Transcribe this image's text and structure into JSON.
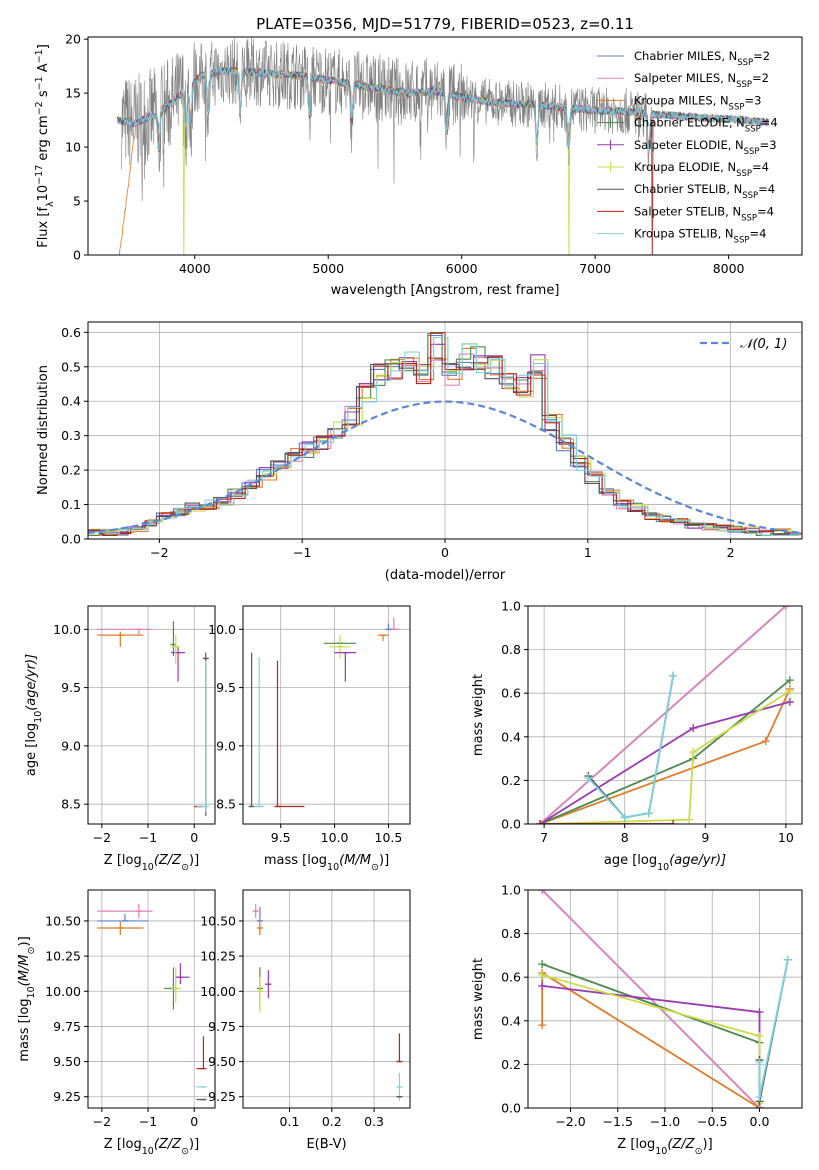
{
  "figure_title": "PLATE=0356, MJD=51779, FIBERID=0523, z=0.11",
  "colors": {
    "c_miles": "#5b7fcf",
    "s_miles": "#e083b8",
    "k_miles": "#e07b2a",
    "c_elodie": "#4d8a4d",
    "s_elodie": "#9a3bb0",
    "k_elodie": "#c9dc4a",
    "c_stelib": "#555555",
    "s_stelib": "#b5251f",
    "k_stelib": "#7fd3dc",
    "data": "#808080",
    "normal": "#5b88d6"
  },
  "chart_data": [
    {
      "id": "spectrum",
      "type": "line",
      "xlabel": "wavelength [Angstrom, rest frame]",
      "ylabel_parts": [
        "Flux [f",
        "λ",
        "10",
        "−17",
        " erg cm",
        "−2",
        " s",
        "−1",
        " A",
        "−1",
        "]"
      ],
      "xlim": [
        3200,
        8550
      ],
      "ylim": [
        0,
        20.2
      ],
      "xticks": [
        4000,
        5000,
        6000,
        7000,
        8000
      ],
      "yticks": [
        0,
        5,
        10,
        15,
        20
      ],
      "grid": false,
      "legend": "upper-right",
      "continuum": {
        "x": [
          3420,
          3550,
          3700,
          3850,
          3950,
          4050,
          4200,
          4400,
          4600,
          4800,
          5000,
          5200,
          5400,
          5600,
          5800,
          6000,
          6200,
          6400,
          6600,
          6800,
          7000,
          7200,
          7400,
          7600,
          7800,
          8000,
          8200,
          8300
        ],
        "y": [
          12.5,
          12.2,
          13.0,
          14.3,
          15.6,
          16.6,
          17.0,
          17.0,
          16.8,
          16.6,
          16.2,
          15.8,
          15.4,
          15.0,
          15.2,
          14.6,
          14.2,
          14.0,
          13.9,
          13.6,
          13.4,
          13.3,
          13.1,
          12.9,
          12.7,
          12.6,
          12.4,
          12.3
        ]
      },
      "data_range": [
        3450,
        7430
      ],
      "absorption_lines": [
        3730,
        3934,
        3969,
        4102,
        4340,
        4861,
        5175,
        5890,
        6563,
        6800,
        7400
      ],
      "legend_entries": [
        {
          "series": "c_miles",
          "label": "Chabrier MILES, N",
          "sub": "SSP",
          "n": "=2"
        },
        {
          "series": "s_miles",
          "label": "Salpeter MILES, N",
          "sub": "SSP",
          "n": "=2"
        },
        {
          "series": "k_miles",
          "label": "Kroupa MILES, N",
          "sub": "SSP",
          "n": "=3"
        },
        {
          "series": "c_elodie",
          "label": "Chabrier ELODIE, N",
          "sub": "SSP",
          "n": "=4"
        },
        {
          "series": "s_elodie",
          "label": "Salpeter ELODIE, N",
          "sub": "SSP",
          "n": "=3"
        },
        {
          "series": "k_elodie",
          "label": "Kroupa ELODIE, N",
          "sub": "SSP",
          "n": "=4"
        },
        {
          "series": "c_stelib",
          "label": "Chabrier STELIB, N",
          "sub": "SSP",
          "n": "=4"
        },
        {
          "series": "s_stelib",
          "label": "Salpeter STELIB, N",
          "sub": "SSP",
          "n": "=4"
        },
        {
          "series": "k_stelib",
          "label": "Kroupa STELIB, N",
          "sub": "SSP",
          "n": "=4"
        }
      ]
    },
    {
      "id": "residuals",
      "type": "line",
      "xlabel": "(data-model)/error",
      "ylabel": "Normed distribution",
      "xlim": [
        -2.5,
        2.5
      ],
      "ylim": [
        0,
        0.63
      ],
      "xticks": [
        -2,
        -1,
        0,
        1,
        2
      ],
      "yticks": [
        0.0,
        0.1,
        0.2,
        0.3,
        0.4,
        0.5,
        0.6
      ],
      "grid": true,
      "legend": "upper-right",
      "normal_label": "𝒩(0, 1)",
      "bin_width": 0.1,
      "hist_left_edge": -2.5,
      "hist_values": [
        0.02,
        0.02,
        0.02,
        0.03,
        0.05,
        0.07,
        0.08,
        0.09,
        0.1,
        0.11,
        0.13,
        0.16,
        0.19,
        0.22,
        0.24,
        0.26,
        0.28,
        0.32,
        0.36,
        0.42,
        0.48,
        0.5,
        0.52,
        0.48,
        0.56,
        0.48,
        0.53,
        0.52,
        0.5,
        0.46,
        0.44,
        0.5,
        0.34,
        0.28,
        0.22,
        0.18,
        0.13,
        0.1,
        0.09,
        0.07,
        0.06,
        0.05,
        0.04,
        0.035,
        0.03,
        0.03,
        0.025,
        0.02,
        0.02,
        0.02
      ]
    },
    {
      "id": "age_z",
      "type": "scatter",
      "xlabel_parts": [
        "Z [log",
        "10",
        "(Z/Z",
        "⊙",
        ")]"
      ],
      "ylabel_parts": [
        "age  [log",
        "10",
        "(age/yr)]"
      ],
      "xlim": [
        -2.3,
        0.45
      ],
      "ylim": [
        8.33,
        10.2
      ],
      "xticks": [
        -2,
        -1,
        0
      ],
      "yticks": [
        8.5,
        9.0,
        9.5,
        10.0
      ],
      "grid": true,
      "points": [
        {
          "s": "s_miles",
          "x": -1.2,
          "y": 10.0,
          "xe": [
            0.9,
            0.3
          ],
          "ye": [
            0.05,
            0.0
          ]
        },
        {
          "s": "k_miles",
          "x": -1.6,
          "y": 9.95,
          "xe": [
            0.5,
            0.5
          ],
          "ye": [
            0.1,
            0.03
          ]
        },
        {
          "s": "c_elodie",
          "x": -0.45,
          "y": 9.87,
          "xe": [
            0.0,
            0.0
          ],
          "ye": [
            0.1,
            0.2
          ]
        },
        {
          "s": "s_elodie",
          "x": -0.35,
          "y": 9.8,
          "xe": [
            0.15,
            0.15
          ],
          "ye": [
            0.25,
            0.05
          ]
        },
        {
          "s": "k_elodie",
          "x": -0.4,
          "y": 9.85,
          "xe": [
            0.1,
            0.1
          ],
          "ye": [
            0.15,
            0.1
          ]
        },
        {
          "s": "c_stelib",
          "x": 0.25,
          "y": 9.75,
          "xe": [
            0.0,
            0.0
          ],
          "ye": [
            1.35,
            0.05
          ]
        },
        {
          "s": "s_stelib",
          "x": 0.1,
          "y": 8.48,
          "xe": [
            0.1,
            0.1
          ],
          "ye": [
            0.0,
            0.0
          ]
        },
        {
          "s": "k_stelib",
          "x": 0.25,
          "y": 8.48,
          "xe": [
            0.2,
            0.0
          ],
          "ye": [
            0.05,
            1.25
          ]
        }
      ]
    },
    {
      "id": "age_mass",
      "type": "scatter",
      "xlabel_parts": [
        "mass [log",
        "10",
        "(M/M",
        "⊙",
        ")]"
      ],
      "xlim": [
        9.15,
        10.7
      ],
      "ylim": [
        8.33,
        10.2
      ],
      "xticks": [
        9.5,
        10.0,
        10.5
      ],
      "yticks": [
        8.5,
        9.0,
        9.5,
        10.0
      ],
      "grid": true,
      "points": [
        {
          "s": "c_elodie",
          "x": 10.05,
          "y": 9.88,
          "xe": [
            0.15,
            0.15
          ],
          "ye": [
            0.0,
            0.0
          ]
        },
        {
          "s": "k_elodie",
          "x": 10.05,
          "y": 9.85,
          "xe": [
            0.1,
            0.1
          ],
          "ye": [
            0.1,
            0.1
          ]
        },
        {
          "s": "s_elodie",
          "x": 10.1,
          "y": 9.8,
          "xe": [
            0.1,
            0.1
          ],
          "ye": [
            0.25,
            0.0
          ]
        },
        {
          "s": "k_miles",
          "x": 10.45,
          "y": 9.95,
          "xe": [
            0.05,
            0.05
          ],
          "ye": [
            0.05,
            0.0
          ]
        },
        {
          "s": "s_miles",
          "x": 10.55,
          "y": 10.0,
          "xe": [
            0.05,
            0.05
          ],
          "ye": [
            0.0,
            0.1
          ]
        },
        {
          "s": "c_miles",
          "x": 10.5,
          "y": 10.0,
          "xe": [
            0.0,
            0.0
          ],
          "ye": [
            0.0,
            0.05
          ]
        },
        {
          "s": "c_stelib",
          "x": 9.23,
          "y": 8.48,
          "xe": [
            0.0,
            0.0
          ],
          "ye": [
            0.0,
            1.32
          ]
        },
        {
          "s": "k_stelib",
          "x": 9.3,
          "y": 8.48,
          "xe": [
            0.05,
            0.05
          ],
          "ye": [
            0.0,
            1.28
          ]
        },
        {
          "s": "s_stelib",
          "x": 9.47,
          "y": 8.48,
          "xe": [
            0.0,
            0.25
          ],
          "ye": [
            0.0,
            1.25
          ]
        }
      ]
    },
    {
      "id": "weight_age",
      "type": "line",
      "xlabel_parts": [
        "age  [log",
        "10",
        "(age/yr)]"
      ],
      "ylabel": "mass weight",
      "xlim": [
        6.8,
        10.2
      ],
      "ylim": [
        0,
        1.0
      ],
      "xticks": [
        7,
        8,
        9,
        10
      ],
      "yticks": [
        0.0,
        0.2,
        0.4,
        0.6,
        0.8,
        1.0
      ],
      "grid": true,
      "series": [
        {
          "s": "c_miles",
          "x": [
            6.95,
            10.0
          ],
          "y": [
            0.0,
            1.0
          ]
        },
        {
          "s": "s_miles",
          "x": [
            6.95,
            10.0
          ],
          "y": [
            0.0,
            1.0
          ]
        },
        {
          "s": "k_miles",
          "x": [
            6.95,
            9.75,
            10.05
          ],
          "y": [
            0.0,
            0.38,
            0.62
          ]
        },
        {
          "s": "c_elodie",
          "x": [
            6.95,
            8.85,
            10.05
          ],
          "y": [
            0.0,
            0.3,
            0.66
          ]
        },
        {
          "s": "s_elodie",
          "x": [
            6.95,
            8.85,
            10.05
          ],
          "y": [
            0.0,
            0.44,
            0.56
          ]
        },
        {
          "s": "k_elodie",
          "x": [
            6.95,
            8.8,
            8.85,
            10.05
          ],
          "y": [
            0.0,
            0.02,
            0.33,
            0.61
          ]
        },
        {
          "s": "c_stelib",
          "x": [
            7.55,
            8.0,
            8.3,
            8.6
          ],
          "y": [
            0.22,
            0.03,
            0.05,
            0.68
          ]
        },
        {
          "s": "k_stelib",
          "x": [
            7.55,
            8.0,
            8.3,
            8.6
          ],
          "y": [
            0.21,
            0.03,
            0.05,
            0.68
          ]
        },
        {
          "s": "s_stelib",
          "x": [
            6.95,
            8.6
          ],
          "y": [
            0.0,
            0.0
          ]
        }
      ]
    },
    {
      "id": "mass_z",
      "type": "scatter",
      "xlabel_parts": [
        "Z [log",
        "10",
        "(Z/Z",
        "⊙",
        ")]"
      ],
      "ylabel_parts": [
        "mass [log",
        "10",
        "(M/M",
        "⊙",
        ")]"
      ],
      "xlim": [
        -2.3,
        0.45
      ],
      "ylim": [
        9.17,
        10.72
      ],
      "xticks": [
        -2,
        -1,
        0
      ],
      "yticks": [
        9.25,
        9.5,
        9.75,
        10.0,
        10.25,
        10.5
      ],
      "grid": true,
      "points": [
        {
          "s": "s_miles",
          "x": -1.2,
          "y": 10.57,
          "xe": [
            0.9,
            0.3
          ],
          "ye": [
            0.05,
            0.05
          ]
        },
        {
          "s": "c_miles",
          "x": -1.5,
          "y": 10.5,
          "xe": [
            0.6,
            0.5
          ],
          "ye": [
            0.0,
            0.05
          ]
        },
        {
          "s": "k_miles",
          "x": -1.6,
          "y": 10.45,
          "xe": [
            0.5,
            0.5
          ],
          "ye": [
            0.05,
            0.05
          ]
        },
        {
          "s": "c_elodie",
          "x": -0.45,
          "y": 10.02,
          "xe": [
            0.2,
            0.1
          ],
          "ye": [
            0.15,
            0.15
          ]
        },
        {
          "s": "k_elodie",
          "x": -0.4,
          "y": 10.02,
          "xe": [
            0.1,
            0.1
          ],
          "ye": [
            0.1,
            0.15
          ]
        },
        {
          "s": "s_elodie",
          "x": -0.3,
          "y": 10.1,
          "xe": [
            0.1,
            0.2
          ],
          "ye": [
            0.05,
            0.1
          ]
        },
        {
          "s": "s_stelib",
          "x": 0.2,
          "y": 9.45,
          "xe": [
            0.15,
            0.0
          ],
          "ye": [
            0.0,
            0.23
          ]
        },
        {
          "s": "k_stelib",
          "x": 0.2,
          "y": 9.32,
          "xe": [
            0.15,
            0.05
          ],
          "ye": [
            0.0,
            0.0
          ]
        },
        {
          "s": "c_stelib",
          "x": 0.2,
          "y": 9.23,
          "xe": [
            0.15,
            0.05
          ],
          "ye": [
            0.0,
            0.0
          ]
        }
      ]
    },
    {
      "id": "mass_ebv",
      "type": "scatter",
      "xlabel": "E(B-V)",
      "xlim": [
        -0.01,
        0.385
      ],
      "ylim": [
        9.17,
        10.72
      ],
      "xticks": [
        0.1,
        0.2,
        0.3
      ],
      "xtick_labels": [
        "0.1",
        "0.2",
        "0.3"
      ],
      "yticks": [
        9.25,
        9.5,
        9.75,
        10.0,
        10.25,
        10.5
      ],
      "grid": true,
      "points": [
        {
          "s": "s_miles",
          "x": 0.02,
          "y": 10.57,
          "xe": [
            0.0,
            0.0
          ],
          "ye": [
            0.05,
            0.05
          ]
        },
        {
          "s": "c_miles",
          "x": 0.03,
          "y": 10.5,
          "xe": [
            0.0,
            0.0
          ],
          "ye": [
            0.1,
            0.1
          ]
        },
        {
          "s": "k_miles",
          "x": 0.03,
          "y": 10.45,
          "xe": [
            0.0,
            0.0
          ],
          "ye": [
            0.05,
            0.05
          ]
        },
        {
          "s": "c_elodie",
          "x": 0.03,
          "y": 10.02,
          "xe": [
            0.0,
            0.0
          ],
          "ye": [
            0.15,
            0.15
          ]
        },
        {
          "s": "k_elodie",
          "x": 0.03,
          "y": 10.0,
          "xe": [
            0.0,
            0.0
          ],
          "ye": [
            0.15,
            0.1
          ]
        },
        {
          "s": "s_elodie",
          "x": 0.05,
          "y": 10.05,
          "xe": [
            0.0,
            0.0
          ],
          "ye": [
            0.1,
            0.1
          ]
        },
        {
          "s": "s_stelib",
          "x": 0.36,
          "y": 9.5,
          "xe": [
            0.0,
            0.0
          ],
          "ye": [
            0.0,
            0.2
          ]
        },
        {
          "s": "k_stelib",
          "x": 0.36,
          "y": 9.32,
          "xe": [
            0.0,
            0.0
          ],
          "ye": [
            0.1,
            0.1
          ]
        },
        {
          "s": "c_stelib",
          "x": 0.36,
          "y": 9.25,
          "xe": [
            0.0,
            0.0
          ],
          "ye": [
            0.0,
            0.0
          ]
        }
      ]
    },
    {
      "id": "weight_z",
      "type": "line",
      "xlabel_parts": [
        "Z [log",
        "10",
        "(Z/Z",
        "⊙",
        ")]"
      ],
      "ylabel": "mass weight",
      "xlim": [
        -2.45,
        0.45
      ],
      "ylim": [
        0,
        1.0
      ],
      "xticks": [
        -2.0,
        -1.5,
        -1.0,
        -0.5,
        0.0
      ],
      "xtick_labels": [
        "−2.0",
        "−1.5",
        "−1.0",
        "−0.5",
        "0.0"
      ],
      "yticks": [
        0.0,
        0.2,
        0.4,
        0.6,
        0.8,
        1.0
      ],
      "grid": true,
      "series": [
        {
          "s": "c_miles",
          "x": [
            -2.3,
            0.0
          ],
          "y": [
            1.0,
            0.0
          ]
        },
        {
          "s": "s_miles",
          "x": [
            -2.3,
            0.0
          ],
          "y": [
            1.0,
            0.0
          ]
        },
        {
          "s": "k_miles",
          "x": [
            -2.3,
            -2.3,
            0.0
          ],
          "y": [
            0.38,
            0.62,
            0.0
          ]
        },
        {
          "s": "c_elodie",
          "x": [
            -2.3,
            0.0,
            0.0
          ],
          "y": [
            0.66,
            0.3,
            0.0
          ]
        },
        {
          "s": "s_elodie",
          "x": [
            -2.3,
            0.0,
            0.0
          ],
          "y": [
            0.56,
            0.44,
            0.0
          ]
        },
        {
          "s": "k_elodie",
          "x": [
            -2.3,
            0.0,
            0.0
          ],
          "y": [
            0.61,
            0.33,
            0.02
          ]
        },
        {
          "s": "c_stelib",
          "x": [
            0.0,
            0.0,
            0.3
          ],
          "y": [
            0.22,
            0.03,
            0.68
          ]
        },
        {
          "s": "k_stelib",
          "x": [
            0.0,
            0.0,
            0.3
          ],
          "y": [
            0.21,
            0.05,
            0.68
          ]
        }
      ]
    }
  ]
}
